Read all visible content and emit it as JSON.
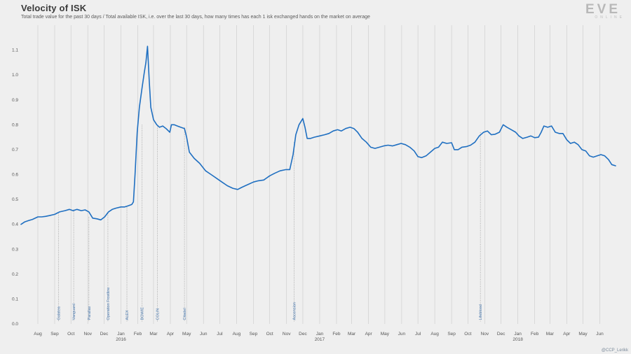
{
  "header": {
    "title": "Velocity of ISK",
    "subtitle": "Total trade value for the past 30 days / Total available ISK, i.e. over the last 30 days, how many times has each 1 isk exchanged hands on the market on average"
  },
  "logo": {
    "main": "EVE",
    "sub": "ONLINE"
  },
  "credit": "@CCP_Lerikk",
  "colors": {
    "line": "#1f6fc1",
    "grid": "#cfcfcf",
    "event_line": "#909090",
    "event_text": "#4c7bb0",
    "background": "#efefef"
  },
  "chart_data": {
    "type": "line",
    "title": "Velocity of ISK",
    "xlabel": "",
    "ylabel": "",
    "x_range": [
      "2015-07-01",
      "2018-06-30"
    ],
    "ylim": [
      0.0,
      1.2
    ],
    "y_ticks": [
      "0.0",
      "0.1",
      "0.2",
      "0.3",
      "0.4",
      "0.5",
      "0.6",
      "0.7",
      "0.8",
      "0.9",
      "1.0",
      "1.1"
    ],
    "y_tick_values": [
      0,
      0.1,
      0.2,
      0.3,
      0.4,
      0.5,
      0.6,
      0.7,
      0.8,
      0.9,
      1.0,
      1.1
    ],
    "x_ticks": [
      {
        "date": "2015-08-01",
        "label": "Aug",
        "year": ""
      },
      {
        "date": "2015-09-01",
        "label": "Sep",
        "year": ""
      },
      {
        "date": "2015-10-01",
        "label": "Oct",
        "year": ""
      },
      {
        "date": "2015-11-01",
        "label": "Nov",
        "year": ""
      },
      {
        "date": "2015-12-01",
        "label": "Dec",
        "year": ""
      },
      {
        "date": "2016-01-01",
        "label": "Jan",
        "year": "2016"
      },
      {
        "date": "2016-02-01",
        "label": "Feb",
        "year": ""
      },
      {
        "date": "2016-03-01",
        "label": "Mar",
        "year": ""
      },
      {
        "date": "2016-04-01",
        "label": "Apr",
        "year": ""
      },
      {
        "date": "2016-05-01",
        "label": "May",
        "year": ""
      },
      {
        "date": "2016-06-01",
        "label": "Jun",
        "year": ""
      },
      {
        "date": "2016-07-01",
        "label": "Jul",
        "year": ""
      },
      {
        "date": "2016-08-01",
        "label": "Aug",
        "year": ""
      },
      {
        "date": "2016-09-01",
        "label": "Sep",
        "year": ""
      },
      {
        "date": "2016-10-01",
        "label": "Oct",
        "year": ""
      },
      {
        "date": "2016-11-01",
        "label": "Nov",
        "year": ""
      },
      {
        "date": "2016-12-01",
        "label": "Dec",
        "year": ""
      },
      {
        "date": "2017-01-01",
        "label": "Jan",
        "year": "2017"
      },
      {
        "date": "2017-02-01",
        "label": "Feb",
        "year": ""
      },
      {
        "date": "2017-03-01",
        "label": "Mar",
        "year": ""
      },
      {
        "date": "2017-04-01",
        "label": "Apr",
        "year": ""
      },
      {
        "date": "2017-05-01",
        "label": "May",
        "year": ""
      },
      {
        "date": "2017-06-01",
        "label": "Jun",
        "year": ""
      },
      {
        "date": "2017-07-01",
        "label": "Jul",
        "year": ""
      },
      {
        "date": "2017-08-01",
        "label": "Aug",
        "year": ""
      },
      {
        "date": "2017-09-01",
        "label": "Sep",
        "year": ""
      },
      {
        "date": "2017-10-01",
        "label": "Oct",
        "year": ""
      },
      {
        "date": "2017-11-01",
        "label": "Nov",
        "year": ""
      },
      {
        "date": "2017-12-01",
        "label": "Dec",
        "year": ""
      },
      {
        "date": "2018-01-01",
        "label": "Jan",
        "year": "2018"
      },
      {
        "date": "2018-02-01",
        "label": "Feb",
        "year": ""
      },
      {
        "date": "2018-03-01",
        "label": "Mar",
        "year": ""
      },
      {
        "date": "2018-04-01",
        "label": "Apr",
        "year": ""
      },
      {
        "date": "2018-05-01",
        "label": "May",
        "year": ""
      },
      {
        "date": "2018-06-01",
        "label": "Jun",
        "year": ""
      }
    ],
    "events": [
      {
        "label": "Galatea",
        "date": "2015-09-08",
        "value": 0.45
      },
      {
        "label": "Vanguard",
        "date": "2015-10-06",
        "value": 0.46
      },
      {
        "label": "Parallax",
        "date": "2015-11-03",
        "value": 0.43
      },
      {
        "label": "Operation Frostline",
        "date": "2015-12-08",
        "value": 0.45
      },
      {
        "label": "ALEX",
        "date": "2016-01-12",
        "value": 0.47
      },
      {
        "label": "BOWIE",
        "date": "2016-02-09",
        "value": 0.8
      },
      {
        "label": "COLIN",
        "date": "2016-03-08",
        "value": 0.8
      },
      {
        "label": "Citadel",
        "date": "2016-04-27",
        "value": 0.79
      },
      {
        "label": "Ascension",
        "date": "2016-11-15",
        "value": 0.73
      },
      {
        "label": "Lifeblood",
        "date": "2017-10-24",
        "value": 0.77
      }
    ],
    "series": [
      {
        "name": "",
        "points": [
          [
            "2015-07-01",
            0.4
          ],
          [
            "2015-07-08",
            0.41
          ],
          [
            "2015-07-15",
            0.415
          ],
          [
            "2015-07-22",
            0.42
          ],
          [
            "2015-08-01",
            0.43
          ],
          [
            "2015-08-08",
            0.43
          ],
          [
            "2015-08-15",
            0.432
          ],
          [
            "2015-08-22",
            0.435
          ],
          [
            "2015-09-01",
            0.44
          ],
          [
            "2015-09-10",
            0.45
          ],
          [
            "2015-09-20",
            0.455
          ],
          [
            "2015-09-28",
            0.46
          ],
          [
            "2015-10-05",
            0.455
          ],
          [
            "2015-10-12",
            0.46
          ],
          [
            "2015-10-20",
            0.455
          ],
          [
            "2015-10-27",
            0.458
          ],
          [
            "2015-11-03",
            0.45
          ],
          [
            "2015-11-10",
            0.425
          ],
          [
            "2015-11-18",
            0.422
          ],
          [
            "2015-11-25",
            0.418
          ],
          [
            "2015-12-02",
            0.43
          ],
          [
            "2015-12-09",
            0.45
          ],
          [
            "2015-12-16",
            0.46
          ],
          [
            "2015-12-23",
            0.465
          ],
          [
            "2016-01-01",
            0.47
          ],
          [
            "2016-01-08",
            0.47
          ],
          [
            "2016-01-15",
            0.475
          ],
          [
            "2016-01-21",
            0.48
          ],
          [
            "2016-01-24",
            0.49
          ],
          [
            "2016-01-27",
            0.6
          ],
          [
            "2016-01-31",
            0.77
          ],
          [
            "2016-02-04",
            0.87
          ],
          [
            "2016-02-09",
            0.95
          ],
          [
            "2016-02-13",
            1.01
          ],
          [
            "2016-02-16",
            1.05
          ],
          [
            "2016-02-19",
            1.115
          ],
          [
            "2016-02-22",
            0.98
          ],
          [
            "2016-02-25",
            0.87
          ],
          [
            "2016-03-01",
            0.82
          ],
          [
            "2016-03-07",
            0.8
          ],
          [
            "2016-03-12",
            0.79
          ],
          [
            "2016-03-18",
            0.795
          ],
          [
            "2016-03-24",
            0.785
          ],
          [
            "2016-03-31",
            0.77
          ],
          [
            "2016-04-03",
            0.8
          ],
          [
            "2016-04-08",
            0.8
          ],
          [
            "2016-04-14",
            0.795
          ],
          [
            "2016-04-20",
            0.79
          ],
          [
            "2016-04-27",
            0.785
          ],
          [
            "2016-05-01",
            0.75
          ],
          [
            "2016-05-06",
            0.69
          ],
          [
            "2016-05-15",
            0.665
          ],
          [
            "2016-05-25",
            0.645
          ],
          [
            "2016-06-05",
            0.615
          ],
          [
            "2016-06-15",
            0.6
          ],
          [
            "2016-06-25",
            0.585
          ],
          [
            "2016-07-05",
            0.57
          ],
          [
            "2016-07-15",
            0.555
          ],
          [
            "2016-07-25",
            0.545
          ],
          [
            "2016-08-03",
            0.54
          ],
          [
            "2016-08-10",
            0.548
          ],
          [
            "2016-08-17",
            0.555
          ],
          [
            "2016-08-24",
            0.562
          ],
          [
            "2016-09-01",
            0.57
          ],
          [
            "2016-09-10",
            0.575
          ],
          [
            "2016-09-20",
            0.578
          ],
          [
            "2016-10-01",
            0.595
          ],
          [
            "2016-10-10",
            0.605
          ],
          [
            "2016-10-20",
            0.615
          ],
          [
            "2016-10-31",
            0.62
          ],
          [
            "2016-11-07",
            0.62
          ],
          [
            "2016-11-13",
            0.68
          ],
          [
            "2016-11-18",
            0.76
          ],
          [
            "2016-11-24",
            0.8
          ],
          [
            "2016-12-01",
            0.825
          ],
          [
            "2016-12-05",
            0.79
          ],
          [
            "2016-12-09",
            0.745
          ],
          [
            "2016-12-15",
            0.745
          ],
          [
            "2016-12-22",
            0.75
          ],
          [
            "2017-01-01",
            0.755
          ],
          [
            "2017-01-10",
            0.76
          ],
          [
            "2017-01-18",
            0.765
          ],
          [
            "2017-01-26",
            0.775
          ],
          [
            "2017-02-03",
            0.78
          ],
          [
            "2017-02-10",
            0.775
          ],
          [
            "2017-02-18",
            0.785
          ],
          [
            "2017-02-26",
            0.79
          ],
          [
            "2017-03-05",
            0.785
          ],
          [
            "2017-03-12",
            0.77
          ],
          [
            "2017-03-20",
            0.745
          ],
          [
            "2017-03-28",
            0.73
          ],
          [
            "2017-04-05",
            0.71
          ],
          [
            "2017-04-13",
            0.705
          ],
          [
            "2017-04-21",
            0.71
          ],
          [
            "2017-04-29",
            0.715
          ],
          [
            "2017-05-07",
            0.718
          ],
          [
            "2017-05-15",
            0.715
          ],
          [
            "2017-05-23",
            0.72
          ],
          [
            "2017-05-31",
            0.725
          ],
          [
            "2017-06-08",
            0.72
          ],
          [
            "2017-06-16",
            0.71
          ],
          [
            "2017-06-24",
            0.695
          ],
          [
            "2017-07-01",
            0.672
          ],
          [
            "2017-07-08",
            0.668
          ],
          [
            "2017-07-16",
            0.675
          ],
          [
            "2017-07-24",
            0.69
          ],
          [
            "2017-08-01",
            0.705
          ],
          [
            "2017-08-08",
            0.71
          ],
          [
            "2017-08-15",
            0.73
          ],
          [
            "2017-08-23",
            0.725
          ],
          [
            "2017-09-01",
            0.728
          ],
          [
            "2017-09-06",
            0.7
          ],
          [
            "2017-09-13",
            0.7
          ],
          [
            "2017-09-20",
            0.71
          ],
          [
            "2017-09-28",
            0.712
          ],
          [
            "2017-10-06",
            0.718
          ],
          [
            "2017-10-14",
            0.73
          ],
          [
            "2017-10-22",
            0.755
          ],
          [
            "2017-10-30",
            0.77
          ],
          [
            "2017-11-06",
            0.775
          ],
          [
            "2017-11-13",
            0.76
          ],
          [
            "2017-11-20",
            0.762
          ],
          [
            "2017-11-28",
            0.77
          ],
          [
            "2017-12-05",
            0.8
          ],
          [
            "2017-12-12",
            0.79
          ],
          [
            "2017-12-20",
            0.78
          ],
          [
            "2017-12-28",
            0.77
          ],
          [
            "2018-01-03",
            0.755
          ],
          [
            "2018-01-10",
            0.745
          ],
          [
            "2018-01-18",
            0.75
          ],
          [
            "2018-01-25",
            0.755
          ],
          [
            "2018-02-01",
            0.748
          ],
          [
            "2018-02-08",
            0.75
          ],
          [
            "2018-02-13",
            0.77
          ],
          [
            "2018-02-18",
            0.795
          ],
          [
            "2018-02-25",
            0.79
          ],
          [
            "2018-03-04",
            0.795
          ],
          [
            "2018-03-11",
            0.77
          ],
          [
            "2018-03-18",
            0.765
          ],
          [
            "2018-03-25",
            0.765
          ],
          [
            "2018-04-01",
            0.74
          ],
          [
            "2018-04-08",
            0.725
          ],
          [
            "2018-04-15",
            0.73
          ],
          [
            "2018-04-22",
            0.72
          ],
          [
            "2018-04-29",
            0.7
          ],
          [
            "2018-05-06",
            0.695
          ],
          [
            "2018-05-13",
            0.675
          ],
          [
            "2018-05-20",
            0.67
          ],
          [
            "2018-05-27",
            0.675
          ],
          [
            "2018-06-03",
            0.68
          ],
          [
            "2018-06-10",
            0.675
          ],
          [
            "2018-06-17",
            0.66
          ],
          [
            "2018-06-23",
            0.64
          ],
          [
            "2018-06-30",
            0.635
          ]
        ]
      }
    ]
  }
}
